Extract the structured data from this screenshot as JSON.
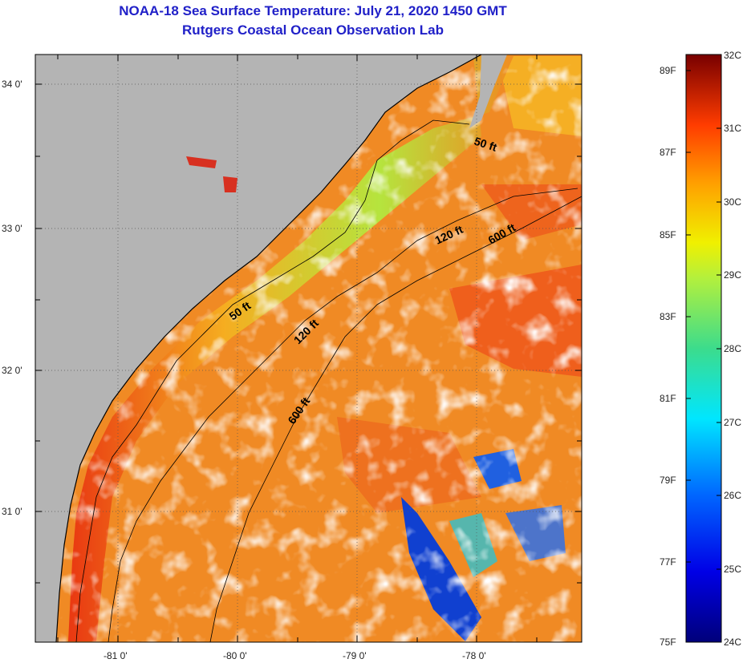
{
  "title_line1": "NOAA-18 Sea Surface Temperature:  July 21, 2020 1450 GMT",
  "title_line2": "Rutgers Coastal Ocean Observation Lab",
  "lat_labels": [
    "34 0'",
    "33 0'",
    "32 0'",
    "31 0'"
  ],
  "lon_labels": [
    "-81 0'",
    "-80 0'",
    "-79 0'",
    "-78 0'"
  ],
  "depth_labels": [
    "50 ft",
    "120 ft",
    "600 ft",
    "50 ft",
    "120 ft",
    "600 ft"
  ],
  "colorbar": {
    "fahrenheit": [
      "89F",
      "87F",
      "85F",
      "83F",
      "81F",
      "79F",
      "77F",
      "75F"
    ],
    "celsius": [
      "32C",
      "31C",
      "30C",
      "29C",
      "28C",
      "27C",
      "26C",
      "25C",
      "24C"
    ]
  },
  "colors": {
    "land": "#b4b4b4",
    "cloud": "#ffffff",
    "title": "#2020c8",
    "sst_warm": "#f07820",
    "sst_cool": "#70e060"
  }
}
